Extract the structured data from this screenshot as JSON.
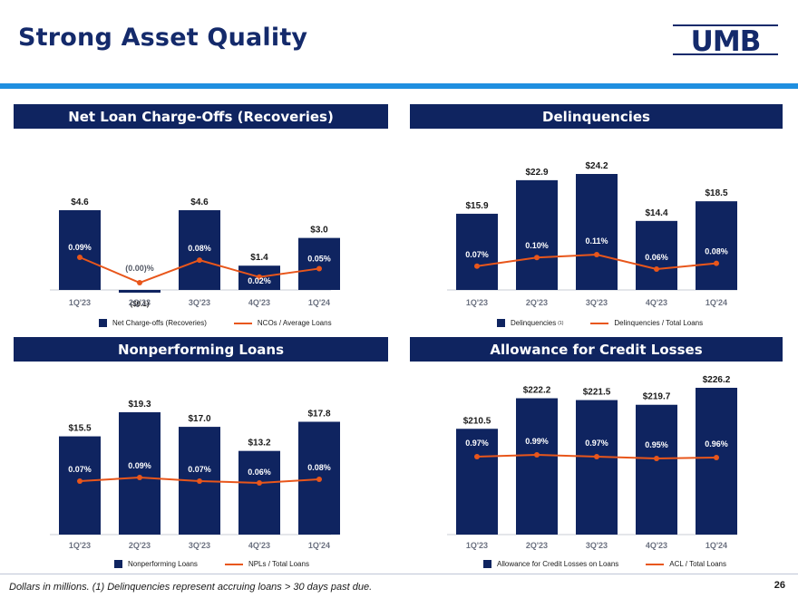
{
  "page": {
    "title": "Strong Asset Quality",
    "logo_text": "UMB",
    "footnote": "Dollars in millions. (1) Delinquencies represent accruing loans > 30 days past due.",
    "page_number": "26",
    "colors": {
      "bar": "#0f2460",
      "line": "#e8561b",
      "accent_rule": "#1f8fe0",
      "title": "#142a6b"
    }
  },
  "panels": [
    {
      "header": "Net Loan Charge-Offs (Recoveries)",
      "legend": {
        "bar_label": "Net Charge-offs (Recoveries)",
        "bar_sup": "",
        "line_label": "NCOs / Average Loans"
      }
    },
    {
      "header": "Delinquencies",
      "legend": {
        "bar_label": "Delinquencies",
        "bar_sup": "(1)",
        "line_label": "Delinquencies / Total Loans"
      }
    },
    {
      "header": "Nonperforming Loans",
      "legend": {
        "bar_label": "Nonperforming Loans",
        "bar_sup": "",
        "line_label": "NPLs / Total Loans"
      }
    },
    {
      "header": "Allowance for Credit Losses",
      "legend": {
        "bar_label": "Allowance for Credit Losses on Loans",
        "bar_sup": "",
        "line_label": "ACL / Total Loans"
      }
    }
  ],
  "chart_data": [
    {
      "type": "bar",
      "title": "Net Loan Charge-Offs (Recoveries)",
      "categories": [
        "1Q'23",
        "2Q'23",
        "3Q'23",
        "4Q'23",
        "1Q'24"
      ],
      "series": [
        {
          "name": "Net Charge-offs (Recoveries)",
          "type": "bar",
          "values": [
            4.6,
            -0.1,
            4.6,
            1.4,
            3.0
          ],
          "labels": [
            "$4.6",
            "($0.1)",
            "$4.6",
            "$1.4",
            "$3.0"
          ]
        },
        {
          "name": "NCOs / Average Loans",
          "type": "line",
          "values": [
            0.09,
            0.0,
            0.08,
            0.02,
            0.05
          ],
          "labels": [
            "0.09%",
            "(0.00)%",
            "0.08%",
            "0.02%",
            "0.05%"
          ]
        }
      ]
    },
    {
      "type": "bar",
      "title": "Delinquencies",
      "categories": [
        "1Q'23",
        "2Q'23",
        "3Q'23",
        "4Q'23",
        "1Q'24"
      ],
      "series": [
        {
          "name": "Delinquencies (1)",
          "type": "bar",
          "values": [
            15.9,
            22.9,
            24.2,
            14.4,
            18.5
          ],
          "labels": [
            "$15.9",
            "$22.9",
            "$24.2",
            "$14.4",
            "$18.5"
          ]
        },
        {
          "name": "Delinquencies / Total Loans",
          "type": "line",
          "values": [
            0.07,
            0.1,
            0.11,
            0.06,
            0.08
          ],
          "labels": [
            "0.07%",
            "0.10%",
            "0.11%",
            "0.06%",
            "0.08%"
          ]
        }
      ]
    },
    {
      "type": "bar",
      "title": "Nonperforming Loans",
      "categories": [
        "1Q'23",
        "2Q'23",
        "3Q'23",
        "4Q'23",
        "1Q'24"
      ],
      "series": [
        {
          "name": "Nonperforming Loans",
          "type": "bar",
          "values": [
            15.5,
            19.3,
            17.0,
            13.2,
            17.8
          ],
          "labels": [
            "$15.5",
            "$19.3",
            "$17.0",
            "$13.2",
            "$17.8"
          ]
        },
        {
          "name": "NPLs / Total Loans",
          "type": "line",
          "values": [
            0.07,
            0.09,
            0.07,
            0.06,
            0.08
          ],
          "labels": [
            "0.07%",
            "0.09%",
            "0.07%",
            "0.06%",
            "0.08%"
          ]
        }
      ]
    },
    {
      "type": "bar",
      "title": "Allowance for Credit Losses",
      "categories": [
        "1Q'23",
        "2Q'23",
        "3Q'23",
        "4Q'23",
        "1Q'24"
      ],
      "series": [
        {
          "name": "Allowance for Credit Losses on Loans",
          "type": "bar",
          "values": [
            210.5,
            222.2,
            221.5,
            219.7,
            226.2
          ],
          "labels": [
            "$210.5",
            "$222.2",
            "$221.5",
            "$219.7",
            "$226.2"
          ]
        },
        {
          "name": "ACL / Total Loans",
          "type": "line",
          "values": [
            0.97,
            0.99,
            0.97,
            0.95,
            0.96
          ],
          "labels": [
            "0.97%",
            "0.99%",
            "0.97%",
            "0.95%",
            "0.96%"
          ]
        }
      ]
    }
  ]
}
